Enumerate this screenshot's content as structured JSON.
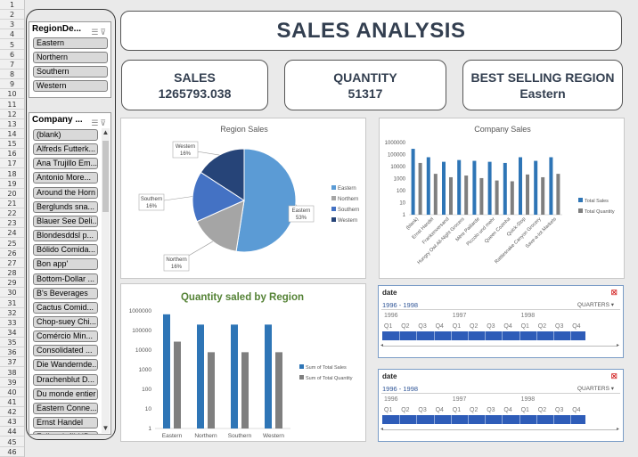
{
  "rows": [
    "1",
    "2",
    "3",
    "4",
    "5",
    "6",
    "7",
    "8",
    "9",
    "10",
    "11",
    "12",
    "13",
    "14",
    "15",
    "16",
    "17",
    "18",
    "19",
    "20",
    "21",
    "22",
    "23",
    "24",
    "25",
    "26",
    "27",
    "28",
    "29",
    "30",
    "31",
    "32",
    "33",
    "34",
    "35",
    "36",
    "37",
    "38",
    "39",
    "40",
    "41",
    "42",
    "43",
    "44",
    "45",
    "46"
  ],
  "region_slicer": {
    "title": "RegionDe...",
    "items": [
      "Eastern",
      "Northern",
      "Southern",
      "Western"
    ]
  },
  "company_slicer": {
    "title": "Company ...",
    "items": [
      "(blank)",
      "Alfreds Futterk...",
      "Ana Trujillo Em...",
      "Antonio More...",
      "Around the Horn",
      "Berglunds sna...",
      "Blauer See Deli...",
      "Blondesddsl p...",
      "Bólido Comida...",
      "Bon app'",
      "Bottom-Dollar ...",
      "B's Beverages",
      "Cactus Comid...",
      "Chop-suey Chi...",
      "Comércio Min...",
      "Consolidated ...",
      "Die Wandernde...",
      "Drachenblut D...",
      "Du monde entier",
      "Eastern Conne...",
      "Ernst Handel",
      "Folk och fä HB"
    ]
  },
  "header": {
    "title": "SALES ANALYSIS"
  },
  "kpis": {
    "sales": {
      "label": "SALES",
      "value": "1265793.038"
    },
    "quantity": {
      "label": "QUANTITY",
      "value": "51317"
    },
    "best_region": {
      "label": "BEST SELLING REGION",
      "value": "Eastern"
    }
  },
  "colors": {
    "eastern": "#5b9bd5",
    "northern": "#a5a5a5",
    "southern": "#4472c4",
    "western": "#264478",
    "bar_blue": "#2e75b6",
    "bar_gray": "#7f7f7f"
  },
  "chart_data": [
    {
      "type": "pie",
      "title": "Region Sales",
      "categories": [
        "Eastern",
        "Northern",
        "Southern",
        "Western"
      ],
      "values": [
        53,
        16,
        16,
        16
      ],
      "data_labels": [
        "Eastern\n53%",
        "Northern\n16%",
        "Southern\n16%",
        "Western\n16%"
      ],
      "legend": [
        "Eastern",
        "Northern",
        "Southern",
        "Western"
      ],
      "legend_position": "right"
    },
    {
      "type": "bar",
      "title": "Company Sales",
      "y_scale": "log",
      "ylim": [
        1,
        1000000
      ],
      "y_ticks": [
        "1",
        "10",
        "100",
        "1000",
        "10000",
        "100000",
        "1000000"
      ],
      "categories": [
        "(blank)",
        "Ernst Handel",
        "Frankenversand",
        "Hungry Owl All-Night Grocers",
        "Mère Paillarde",
        "Piccolo und mehr",
        "Queen Cozinha",
        "Quick-Stop",
        "Rattlesnake Canyon Grocery",
        "Save-a-lot Markets"
      ],
      "series": [
        {
          "name": "Total Sales",
          "values": [
            300000,
            60000,
            25000,
            35000,
            30000,
            25000,
            20000,
            60000,
            30000,
            60000
          ]
        },
        {
          "name": "Total Quantity",
          "values": [
            20000,
            2500,
            1300,
            1800,
            1100,
            700,
            600,
            2200,
            1300,
            2500
          ]
        }
      ],
      "legend_position": "right"
    },
    {
      "type": "bar",
      "title": "Quantity saled by Region",
      "y_scale": "log",
      "ylim": [
        1,
        1000000
      ],
      "y_ticks": [
        "1",
        "10",
        "100",
        "1000",
        "10000",
        "100000",
        "1000000"
      ],
      "categories": [
        "Eastern",
        "Northern",
        "Southern",
        "Western"
      ],
      "series": [
        {
          "name": "Sum of Total Sales",
          "values": [
            670000,
            200000,
            200000,
            200000
          ]
        },
        {
          "name": "Sum of Total Quantity",
          "values": [
            27000,
            7800,
            7800,
            7800
          ]
        }
      ],
      "legend_position": "right"
    }
  ],
  "timelines": [
    {
      "field": "date",
      "range": "1996 - 1998",
      "level": "QUARTERS",
      "years": [
        "1996",
        "1997",
        "1998"
      ],
      "quarters": [
        "Q1",
        "Q2",
        "Q3",
        "Q4",
        "Q1",
        "Q2",
        "Q3",
        "Q4",
        "Q1",
        "Q2",
        "Q3",
        "Q4"
      ]
    },
    {
      "field": "date",
      "range": "1996 - 1998",
      "level": "QUARTERS",
      "years": [
        "1996",
        "1997",
        "1998"
      ],
      "quarters": [
        "Q1",
        "Q2",
        "Q3",
        "Q4",
        "Q1",
        "Q2",
        "Q3",
        "Q4",
        "Q1",
        "Q2",
        "Q3",
        "Q4"
      ]
    }
  ]
}
